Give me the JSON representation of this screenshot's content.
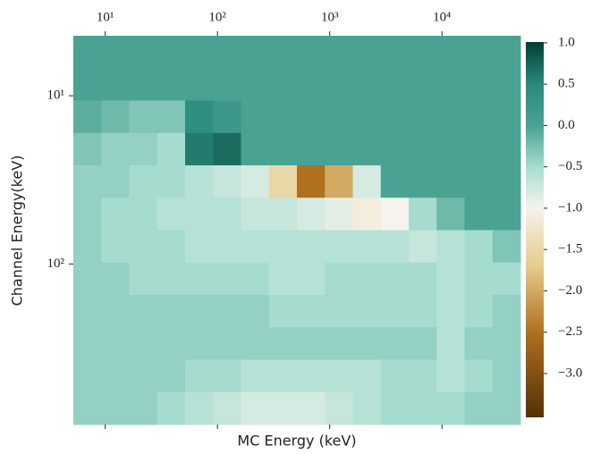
{
  "chart_data": {
    "type": "heatmap",
    "xlabel": "MC Energy (keV)",
    "ylabel": "Channel Energy(keV)",
    "xscale": "log",
    "yscale": "log",
    "yinvert": true,
    "xaxis_position": "top",
    "xlim": [
      5.2,
      50000
    ],
    "ylim": [
      4.4,
      900
    ],
    "xticks": [
      {
        "value": 10,
        "label": "10¹"
      },
      {
        "value": 100,
        "label": "10²"
      },
      {
        "value": 1000,
        "label": "10³"
      },
      {
        "value": 10000,
        "label": "10⁴"
      }
    ],
    "yticks": [
      {
        "value": 10,
        "label": "10¹"
      },
      {
        "value": 100,
        "label": "10²"
      }
    ],
    "clim": [
      -3.53,
      1.01
    ],
    "cticks": [
      {
        "value": 1.0,
        "label": "1.0"
      },
      {
        "value": 0.5,
        "label": "0.5"
      },
      {
        "value": 0.0,
        "label": "0.0"
      },
      {
        "value": -0.5,
        "label": "−0.5"
      },
      {
        "value": -1.0,
        "label": "−1.0"
      },
      {
        "value": -1.5,
        "label": "−1.5"
      },
      {
        "value": -2.0,
        "label": "−2.0"
      },
      {
        "value": -2.5,
        "label": "−2.5"
      },
      {
        "value": -3.0,
        "label": "−3.0"
      }
    ],
    "colormap": [
      [
        -3.53,
        "#543005"
      ],
      [
        -2.5,
        "#b0701f"
      ],
      [
        -1.7,
        "#e6cc8c"
      ],
      [
        -1.0,
        "#f5f3ec"
      ],
      [
        -0.5,
        "#a6dcd0"
      ],
      [
        0.0,
        "#4aa293"
      ],
      [
        0.5,
        "#2a8a7c"
      ],
      [
        1.01,
        "#013d32"
      ]
    ],
    "z": [
      [
        0,
        0,
        0,
        0,
        0,
        0,
        0,
        0,
        0,
        0,
        0,
        0,
        0,
        0,
        0,
        0
      ],
      [
        0,
        0,
        0,
        0,
        0,
        0,
        0,
        0,
        0,
        0,
        0,
        0,
        0,
        0,
        0,
        0
      ],
      [
        -0.1,
        -0.2,
        -0.3,
        -0.3,
        0.4,
        0.2,
        0,
        0,
        0,
        0,
        0,
        0,
        0,
        0,
        0,
        0
      ],
      [
        -0.3,
        -0.4,
        -0.4,
        -0.5,
        0.6,
        0.7,
        0,
        0,
        0,
        0,
        0,
        0,
        0,
        0,
        0,
        0
      ],
      [
        -0.4,
        -0.4,
        -0.5,
        -0.5,
        -0.6,
        -0.7,
        -0.8,
        -1.5,
        -2.5,
        -2.0,
        -0.8,
        0,
        0,
        0,
        0,
        0
      ],
      [
        -0.4,
        -0.5,
        -0.5,
        -0.6,
        -0.6,
        -0.6,
        -0.7,
        -0.7,
        -0.8,
        -0.9,
        -1.1,
        -1.0,
        -0.5,
        -0.2,
        0,
        0
      ],
      [
        -0.4,
        -0.5,
        -0.5,
        -0.5,
        -0.6,
        -0.6,
        -0.6,
        -0.6,
        -0.6,
        -0.6,
        -0.6,
        -0.6,
        -0.7,
        -0.6,
        -0.5,
        -0.3
      ],
      [
        -0.4,
        -0.4,
        -0.5,
        -0.5,
        -0.5,
        -0.5,
        -0.5,
        -0.6,
        -0.6,
        -0.5,
        -0.5,
        -0.5,
        -0.5,
        -0.6,
        -0.5,
        -0.5
      ],
      [
        -0.4,
        -0.4,
        -0.4,
        -0.4,
        -0.4,
        -0.4,
        -0.4,
        -0.5,
        -0.5,
        -0.5,
        -0.5,
        -0.5,
        -0.5,
        -0.6,
        -0.5,
        -0.4
      ],
      [
        -0.4,
        -0.4,
        -0.4,
        -0.4,
        -0.4,
        -0.4,
        -0.4,
        -0.4,
        -0.4,
        -0.4,
        -0.4,
        -0.4,
        -0.4,
        -0.6,
        -0.4,
        -0.4
      ],
      [
        -0.4,
        -0.4,
        -0.4,
        -0.4,
        -0.5,
        -0.5,
        -0.6,
        -0.6,
        -0.6,
        -0.6,
        -0.6,
        -0.5,
        -0.5,
        -0.6,
        -0.5,
        -0.4
      ],
      [
        -0.4,
        -0.4,
        -0.4,
        -0.5,
        -0.6,
        -0.7,
        -0.8,
        -0.8,
        -0.8,
        -0.7,
        -0.6,
        -0.5,
        -0.5,
        -0.5,
        -0.4,
        -0.4
      ]
    ]
  }
}
